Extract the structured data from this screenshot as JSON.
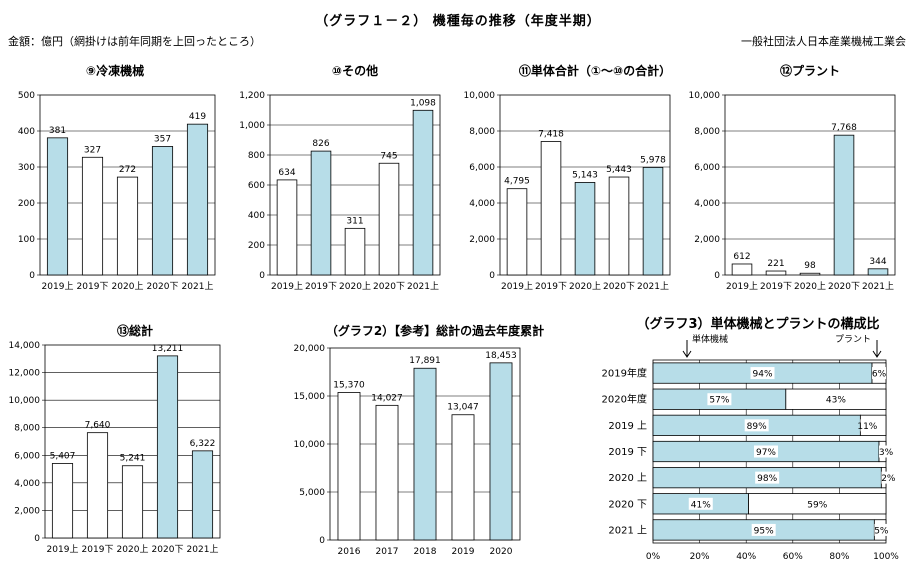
{
  "header": {
    "title": "（グラフ１－２） 機種毎の推移（年度半期）",
    "unit_note": "金額：億円（網掛けは前年同期を上回ったところ）",
    "organization": "一般社団法人日本産業機械工業会"
  },
  "colors": {
    "highlight": "#b7dde8",
    "plain": "#ffffff",
    "stroke": "#000000"
  },
  "chart_data": [
    {
      "type": "bar",
      "title": "⑨冷凍機械",
      "categories": [
        "2019上",
        "2019下",
        "2020上",
        "2020下",
        "2021上"
      ],
      "values": [
        381,
        327,
        272,
        357,
        419
      ],
      "value_labels": [
        "381",
        "327",
        "272",
        "357",
        "419"
      ],
      "highlighted": [
        true,
        false,
        false,
        true,
        true
      ],
      "ylim": [
        0,
        500
      ],
      "yticks": [
        "0",
        "100",
        "200",
        "300",
        "400",
        "500"
      ],
      "grid": true
    },
    {
      "type": "bar",
      "title": "⑩その他",
      "categories": [
        "2019上",
        "2019下",
        "2020上",
        "2020下",
        "2021上"
      ],
      "values": [
        634,
        826,
        311,
        745,
        1098
      ],
      "value_labels": [
        "634",
        "826",
        "311",
        "745",
        "1,098"
      ],
      "highlighted": [
        false,
        true,
        false,
        false,
        true
      ],
      "ylim": [
        0,
        1200
      ],
      "yticks": [
        "0",
        "200",
        "400",
        "600",
        "800",
        "1,000",
        "1,200"
      ],
      "grid": true
    },
    {
      "type": "bar",
      "title": "⑪単体合計（①～⑩の合計）",
      "categories": [
        "2019上",
        "2019下",
        "2020上",
        "2020下",
        "2021上"
      ],
      "values": [
        4795,
        7418,
        5143,
        5443,
        5978
      ],
      "value_labels": [
        "4,795",
        "7,418",
        "5,143",
        "5,443",
        "5,978"
      ],
      "highlighted": [
        false,
        false,
        true,
        false,
        true
      ],
      "ylim": [
        0,
        10000
      ],
      "yticks": [
        "0",
        "2,000",
        "4,000",
        "6,000",
        "8,000",
        "10,000"
      ],
      "grid": true
    },
    {
      "type": "bar",
      "title": "⑫プラント",
      "categories": [
        "2019上",
        "2019下",
        "2020上",
        "2020下",
        "2021上"
      ],
      "values": [
        612,
        221,
        98,
        7768,
        344
      ],
      "value_labels": [
        "612",
        "221",
        "98",
        "7,768",
        "344"
      ],
      "highlighted": [
        false,
        false,
        false,
        true,
        true
      ],
      "ylim": [
        0,
        10000
      ],
      "yticks": [
        "0",
        "2,000",
        "4,000",
        "6,000",
        "8,000",
        "10,000"
      ],
      "grid": true
    },
    {
      "type": "bar",
      "title": "⑬総計",
      "categories": [
        "2019上",
        "2019下",
        "2020上",
        "2020下",
        "2021上"
      ],
      "values": [
        5407,
        7640,
        5241,
        13211,
        6322
      ],
      "value_labels": [
        "5,407",
        "7,640",
        "5,241",
        "13,211",
        "6,322"
      ],
      "highlighted": [
        false,
        false,
        false,
        true,
        true
      ],
      "ylim": [
        0,
        14000
      ],
      "yticks": [
        "0",
        "2,000",
        "4,000",
        "6,000",
        "8,000",
        "10,000",
        "12,000",
        "14,000"
      ],
      "grid": true
    },
    {
      "type": "bar",
      "title": "（グラフ2）【参考】総計の過去年度累計",
      "categories": [
        "2016",
        "2017",
        "2018",
        "2019",
        "2020"
      ],
      "values": [
        15370,
        14027,
        17891,
        13047,
        18453
      ],
      "value_labels": [
        "15,370",
        "14,027",
        "17,891",
        "13,047",
        "18,453"
      ],
      "highlighted": [
        false,
        false,
        true,
        false,
        true
      ],
      "ylim": [
        0,
        20000
      ],
      "yticks": [
        "0",
        "5,000",
        "10,000",
        "15,000",
        "20,000"
      ],
      "grid": true
    },
    {
      "type": "stacked_bar_horizontal",
      "title": "（グラフ3）単体機械とプラントの構成比",
      "categories": [
        "2019年度",
        "2020年度",
        "2019 上",
        "2019 下",
        "2020 上",
        "2020 下",
        "2021 上"
      ],
      "series": [
        {
          "name": "単体機械",
          "values": [
            94,
            57,
            89,
            97,
            98,
            41,
            95
          ],
          "labels": [
            "94%",
            "57%",
            "89%",
            "97%",
            "98%",
            "41%",
            "95%"
          ]
        },
        {
          "name": "プラント",
          "values": [
            6,
            43,
            11,
            3,
            2,
            59,
            5
          ],
          "labels": [
            "6%",
            "43%",
            "11%",
            "3%",
            "2%",
            "59%",
            "5%"
          ]
        }
      ],
      "xlim": [
        0,
        100
      ],
      "xticks": [
        "0%",
        "20%",
        "40%",
        "60%",
        "80%",
        "100%"
      ],
      "grid": true
    }
  ]
}
